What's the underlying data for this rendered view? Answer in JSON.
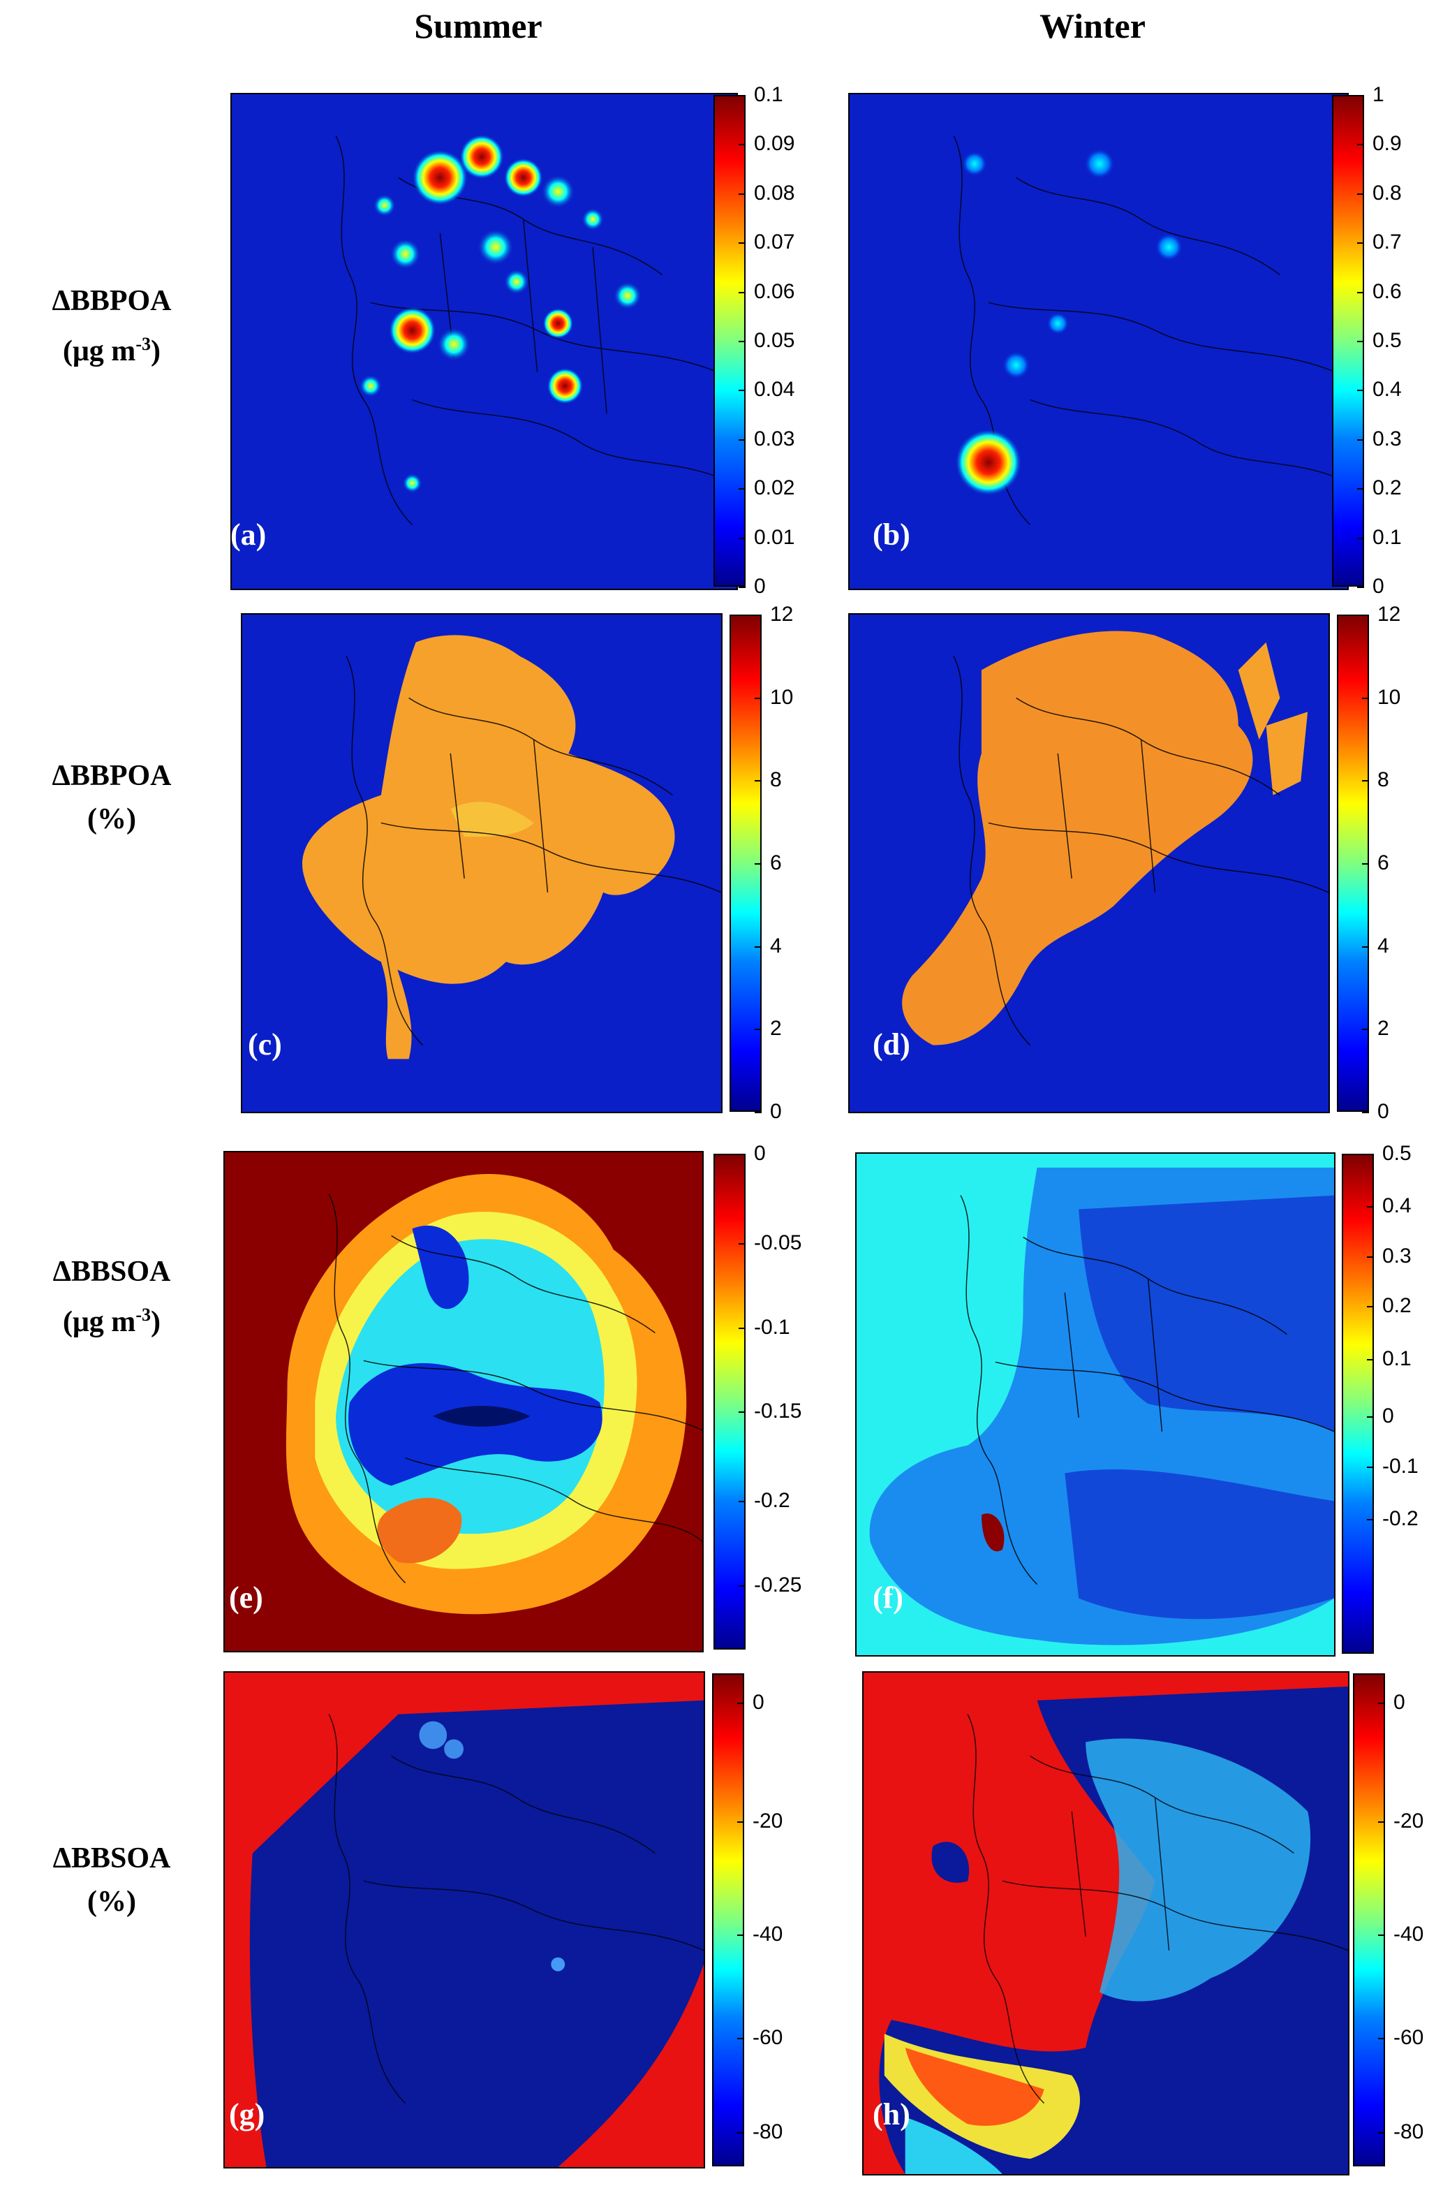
{
  "column_titles": [
    "Summer",
    "Winter"
  ],
  "row_labels": [
    {
      "name": "ΔBBPOA",
      "unit_base": "(μg m",
      "unit_exp": "-3",
      "unit_tail": ")"
    },
    {
      "name": "ΔBBPOA",
      "unit_base": "(%)",
      "unit_exp": "",
      "unit_tail": ""
    },
    {
      "name": "ΔBBSOA",
      "unit_base": "(μg m",
      "unit_exp": "-3",
      "unit_tail": ")"
    },
    {
      "name": "ΔBBSOA",
      "unit_base": "(%)",
      "unit_exp": "",
      "unit_tail": ""
    }
  ],
  "panels": [
    {
      "label": "(a)",
      "bg": "#0a1fc8",
      "ticks": [
        "0.1",
        "0.09",
        "0.08",
        "0.07",
        "0.06",
        "0.05",
        "0.04",
        "0.03",
        "0.02",
        "0.01",
        "0"
      ]
    },
    {
      "label": "(b)",
      "bg": "#0a1fc8",
      "ticks": [
        "1",
        "0.9",
        "0.8",
        "0.7",
        "0.6",
        "0.5",
        "0.4",
        "0.3",
        "0.2",
        "0.1",
        "0"
      ]
    },
    {
      "label": "(c)",
      "bg": "#0a1fc8",
      "ticks": [
        "12",
        "10",
        "8",
        "6",
        "4",
        "2",
        "0"
      ]
    },
    {
      "label": "(d)",
      "bg": "#0a1fc8",
      "ticks": [
        "12",
        "10",
        "8",
        "6",
        "4",
        "2",
        "0"
      ]
    },
    {
      "label": "(e)",
      "bg": "#8a0000",
      "ticks": [
        "0",
        "-0.05",
        "-0.1",
        "-0.15",
        "-0.2",
        "-0.25"
      ]
    },
    {
      "label": "(f)",
      "bg": "#29f0f0",
      "ticks": [
        "0.5",
        "0.4",
        "0.3",
        "0.2",
        "0.1",
        "0",
        "-0.1",
        "-0.2"
      ]
    },
    {
      "label": "(g)",
      "bg": "#e81212",
      "ticks": [
        "0",
        "-20",
        "-40",
        "-60",
        "-80"
      ]
    },
    {
      "label": "(h)",
      "bg": "#e81212",
      "ticks": [
        "0",
        "-20",
        "-40",
        "-60",
        "-80"
      ]
    }
  ]
}
